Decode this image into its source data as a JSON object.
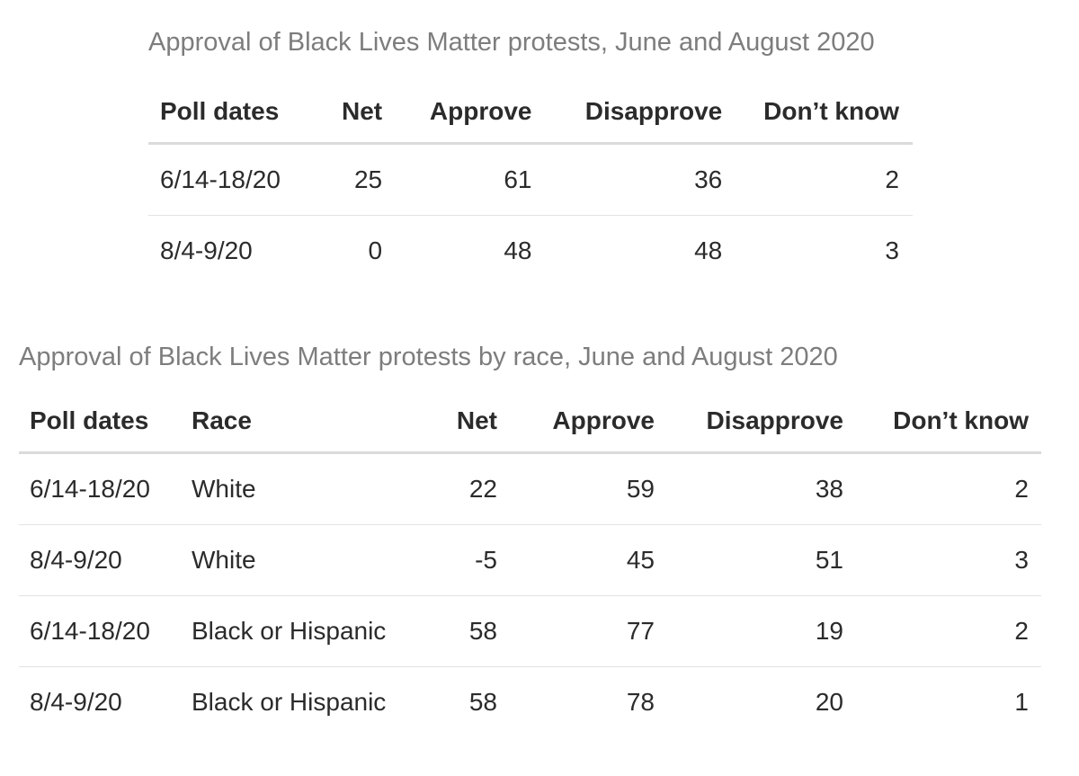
{
  "page": {
    "background_color": "#ffffff",
    "text_color": "#2b2b2b",
    "title_color": "#7d7d7d",
    "header_rule_color": "#dbdbdb",
    "row_rule_color": "#e3e3e3"
  },
  "chart_data": [
    {
      "type": "table",
      "title": "Approval of Black Lives Matter protests, June and August 2020",
      "columns": [
        "Poll dates",
        "Net",
        "Approve",
        "Disapprove",
        "Don’t know"
      ],
      "rows": [
        [
          "6/14-18/20",
          "25",
          "61",
          "36",
          "2"
        ],
        [
          "8/4-9/20",
          "0",
          "48",
          "48",
          "3"
        ]
      ]
    },
    {
      "type": "table",
      "title": "Approval of Black Lives Matter protests by race, June and August 2020",
      "columns": [
        "Poll dates",
        "Race",
        "Net",
        "Approve",
        "Disapprove",
        "Don’t know"
      ],
      "rows": [
        [
          "6/14-18/20",
          "White",
          "22",
          "59",
          "38",
          "2"
        ],
        [
          "8/4-9/20",
          "White",
          "-5",
          "45",
          "51",
          "3"
        ],
        [
          "6/14-18/20",
          "Black or Hispanic",
          "58",
          "77",
          "19",
          "2"
        ],
        [
          "8/4-9/20",
          "Black or Hispanic",
          "58",
          "78",
          "20",
          "1"
        ]
      ]
    }
  ]
}
